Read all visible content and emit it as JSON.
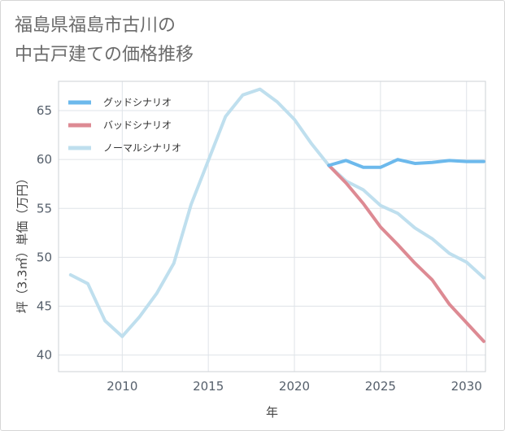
{
  "title_line1": "福島県福島市古川の",
  "title_line2": "中古戸建ての価格推移",
  "chart_data": {
    "type": "line",
    "title": "福島県福島市古川の中古戸建ての価格推移",
    "xlabel": "年",
    "ylabel": "坪（3.3㎡）単価（万円）",
    "xlim": [
      2006.3,
      2031.1
    ],
    "ylim": [
      38.3,
      68.0
    ],
    "xticks": [
      2010,
      2015,
      2020,
      2025,
      2030
    ],
    "yticks": [
      40,
      45,
      50,
      55,
      60,
      65
    ],
    "grid": true,
    "legend_position": "top-left",
    "series": [
      {
        "name": "グッドシナリオ",
        "color": "#6cb9ec",
        "x": [
          2022,
          2023,
          2024,
          2025,
          2026,
          2027,
          2028,
          2029,
          2030,
          2031
        ],
        "y": [
          59.4,
          59.9,
          59.2,
          59.2,
          60.0,
          59.6,
          59.7,
          59.9,
          59.8,
          59.8
        ]
      },
      {
        "name": "バッドシナリオ",
        "color": "#dd8a93",
        "x": [
          2022,
          2023,
          2024,
          2025,
          2026,
          2027,
          2028,
          2029,
          2030,
          2031
        ],
        "y": [
          59.4,
          57.6,
          55.5,
          53.1,
          51.3,
          49.4,
          47.7,
          45.2,
          43.3,
          41.4
        ]
      },
      {
        "name": "ノーマルシナリオ",
        "color": "#bfdfee",
        "x": [
          2007,
          2008,
          2009,
          2010,
          2011,
          2012,
          2013,
          2014,
          2015,
          2016,
          2017,
          2018,
          2019,
          2020,
          2021,
          2022,
          2023,
          2024,
          2025,
          2026,
          2027,
          2028,
          2029,
          2030,
          2031
        ],
        "y": [
          48.2,
          47.3,
          43.5,
          41.9,
          43.9,
          46.3,
          49.4,
          55.4,
          59.9,
          64.4,
          66.6,
          67.2,
          65.9,
          64.1,
          61.6,
          59.4,
          57.8,
          56.9,
          55.3,
          54.5,
          53.0,
          51.9,
          50.4,
          49.5,
          47.9
        ]
      }
    ]
  }
}
